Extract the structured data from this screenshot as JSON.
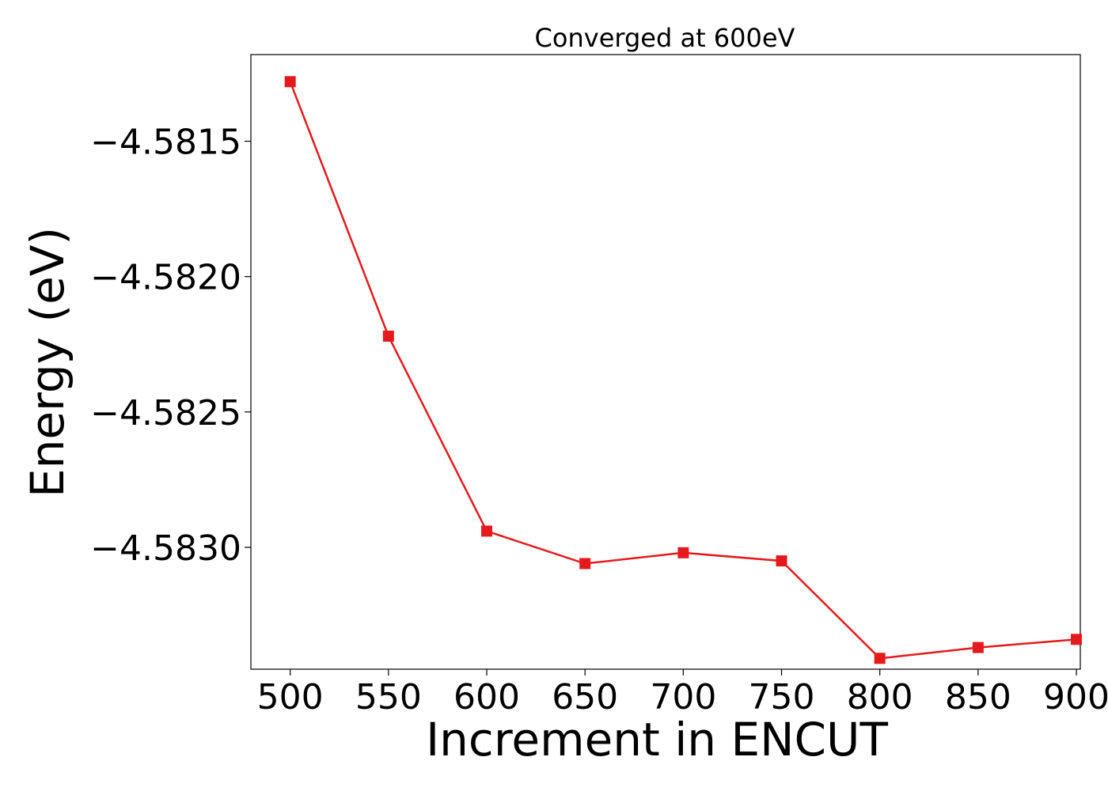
{
  "chart_data": {
    "type": "line",
    "title": "Converged at 600eV",
    "xlabel": "Increment in ENCUT",
    "ylabel": "Energy (eV)",
    "x": [
      500,
      550,
      600,
      650,
      700,
      750,
      800,
      850,
      900
    ],
    "series": [
      {
        "values": [
          -4.58128,
          -4.58222,
          -4.58294,
          -4.58306,
          -4.58302,
          -4.58305,
          -4.58341,
          -4.58337,
          -4.58334
        ],
        "color": "#e41a1c",
        "marker": "square"
      }
    ],
    "xticks": [
      500,
      550,
      600,
      650,
      700,
      750,
      800,
      850,
      900
    ],
    "xtick_labels": [
      "500",
      "550",
      "600",
      "650",
      "700",
      "750",
      "800",
      "850",
      "900"
    ],
    "yticks": [
      -4.5815,
      -4.582,
      -4.5825,
      -4.583
    ],
    "ytick_labels": [
      "−4.5815",
      "−4.5820",
      "−4.5825",
      "−4.5830"
    ],
    "xlim": [
      480,
      902
    ],
    "ylim": [
      -4.58345,
      -4.58118
    ],
    "grid": false,
    "legend": false
  }
}
